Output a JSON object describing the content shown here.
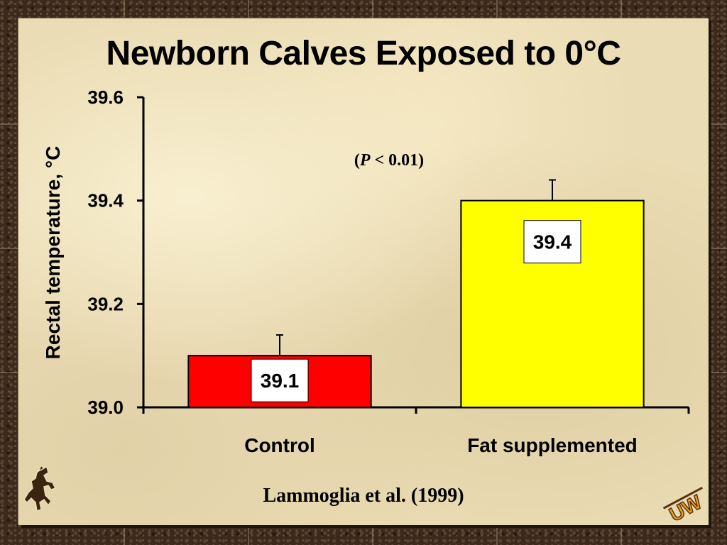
{
  "slide": {
    "title": "Newborn Calves Exposed to 0°C",
    "citation": "Lammoglia et al. (1999)",
    "logo_right_text": "UW"
  },
  "chart_data": {
    "type": "bar",
    "categories": [
      "Control",
      "Fat supplemented"
    ],
    "values": [
      39.1,
      39.4
    ],
    "error_upper": [
      39.14,
      39.44
    ],
    "data_labels": [
      "39.1",
      "39.4"
    ],
    "bar_colors": [
      "#ff0000",
      "#ffff00"
    ],
    "ylabel": "Rectal temperature, °C",
    "xlabel": "",
    "ylim": [
      39.0,
      39.6
    ],
    "yticks": [
      "39.0",
      "39.2",
      "39.4",
      "39.6"
    ],
    "annotation": {
      "prefix": "(",
      "italic": "P",
      "suffix": " < 0.01)"
    },
    "grid": false
  }
}
